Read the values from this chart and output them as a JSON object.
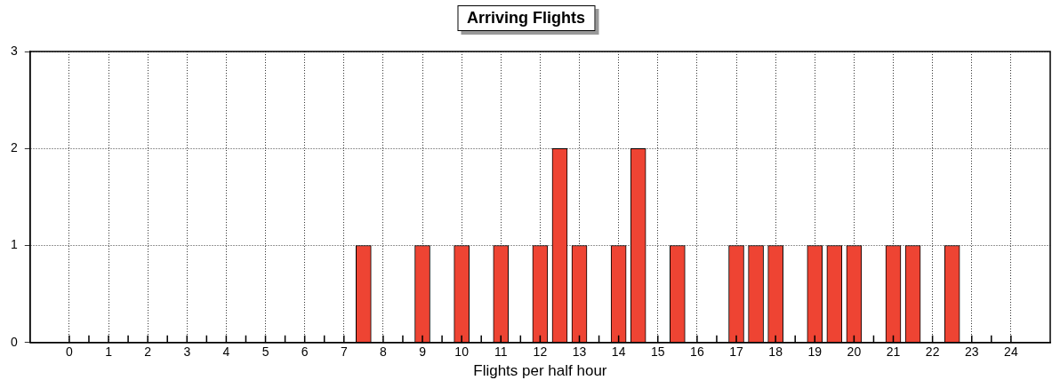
{
  "chart_data": {
    "type": "bar",
    "title": "Arriving Flights",
    "xlabel": "Flights per half hour",
    "x": [
      7.5,
      9,
      10,
      11,
      12,
      12.5,
      13,
      14,
      14.5,
      15.5,
      17,
      17.5,
      18,
      19,
      19.5,
      20,
      21,
      21.5,
      22.5
    ],
    "values": [
      1,
      1,
      1,
      1,
      1,
      2,
      1,
      1,
      2,
      1,
      1,
      1,
      1,
      1,
      1,
      1,
      1,
      1,
      1
    ],
    "color": "#ee4433",
    "xlim": [
      -1,
      25
    ],
    "xticks": [
      0,
      {
        "value": 0.5,
        "label": null
      },
      1,
      {
        "value": 1.5,
        "label": null
      },
      2,
      {
        "value": 2.5,
        "label": null
      },
      3,
      {
        "value": 3.5,
        "label": null
      },
      4,
      {
        "value": 4.5,
        "label": null
      },
      5,
      {
        "value": 5.5,
        "label": null
      },
      6,
      {
        "value": 6.5,
        "label": null
      },
      7,
      8,
      {
        "value": 8.5,
        "label": null
      },
      9,
      {
        "value": 9.5,
        "label": null
      },
      10,
      {
        "value": 10.5,
        "label": null
      },
      11,
      {
        "value": 11.5,
        "label": null
      },
      12,
      13,
      {
        "value": 13.5,
        "label": null
      },
      14,
      15,
      16,
      {
        "value": 16.5,
        "label": null
      },
      17,
      18,
      {
        "value": 18.5,
        "label": null
      },
      19,
      20,
      {
        "value": 20.5,
        "label": null
      },
      21,
      22,
      23,
      {
        "value": 23.5,
        "label": null
      },
      24
    ],
    "ylim": [
      0,
      3
    ],
    "yticks": [
      0,
      1,
      2,
      3
    ],
    "grid": true,
    "legend": false
  }
}
